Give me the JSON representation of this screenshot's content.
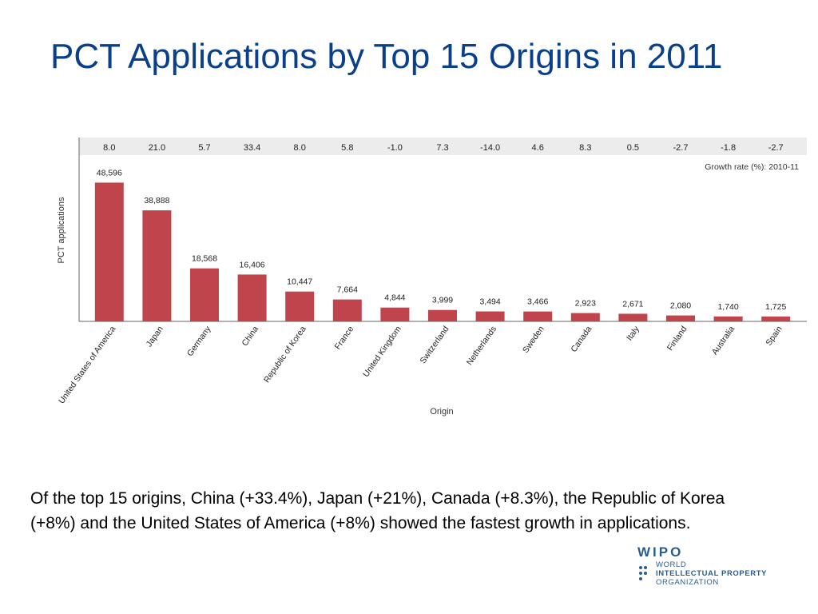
{
  "slide": {
    "title": "PCT Applications by Top 15 Origins in 2011",
    "caption": "Of the top 15 origins, China (+33.4%), Japan (+21%), Canada (+8.3%), the Republic of Korea (+8%) and the United States of America (+8%) showed the fastest growth in applications."
  },
  "logo": {
    "mark": "WIPO",
    "line1": "WORLD",
    "line2": "INTELLECTUAL PROPERTY",
    "line3": "ORGANIZATION"
  },
  "chart_data": {
    "type": "bar",
    "title": "",
    "xlabel": "Origin",
    "ylabel": "PCT applications",
    "categories": [
      "United States of America",
      "Japan",
      "Germany",
      "China",
      "Republic of Korea",
      "France",
      "United Kingdom",
      "Switzerland",
      "Netherlands",
      "Sweden",
      "Canada",
      "Italy",
      "Finland",
      "Australia",
      "Spain"
    ],
    "values": [
      48596,
      38888,
      18568,
      16406,
      10447,
      7664,
      4844,
      3999,
      3494,
      3466,
      2923,
      2671,
      2080,
      1740,
      1725
    ],
    "value_labels": [
      "48,596",
      "38,888",
      "18,568",
      "16,406",
      "10,447",
      "7,664",
      "4,844",
      "3,999",
      "3,494",
      "3,466",
      "2,923",
      "2,671",
      "2,080",
      "1,740",
      "1,725"
    ],
    "growth_rates": [
      "8.0",
      "21.0",
      "5.7",
      "33.4",
      "8.0",
      "5.8",
      "-1.0",
      "7.3",
      "-14.0",
      "4.6",
      "8.3",
      "0.5",
      "-2.7",
      "-1.8",
      "-2.7"
    ],
    "growth_label": "Growth rate (%): 2010-11",
    "ylim": [
      0,
      56000
    ],
    "grid": false,
    "bar_color": "#c0444b"
  }
}
